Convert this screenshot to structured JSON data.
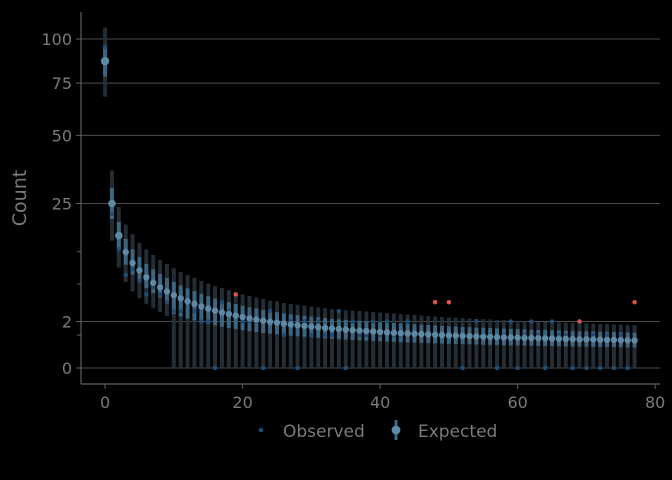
{
  "chart_data": {
    "type": "scatter",
    "title": "",
    "xlabel": "",
    "ylabel": "Count",
    "xlim": [
      -3.5,
      80.7
    ],
    "ylim_axis_ticks_note": "sqrt scale",
    "y_scale": "sqrt",
    "ylim": [
      0,
      125
    ],
    "x_ticks": [
      0,
      20,
      40,
      60,
      80
    ],
    "x_tick_labels": [
      "0",
      "20",
      "40",
      "60",
      "80"
    ],
    "y_major_ticks": [
      0,
      2,
      25,
      50,
      75,
      100
    ],
    "y_major_tick_labels": [
      "0",
      "2",
      "25",
      "50",
      "75",
      "100"
    ],
    "y_minor_ticks": [
      1,
      6.5,
      12.5
    ],
    "grid": true,
    "legend_position": "bottom",
    "legend": [
      {
        "label": "Observed",
        "color": "#1d4e77"
      },
      {
        "label": "Expected",
        "color": "#5e8aa8"
      }
    ],
    "colors": {
      "observed": "#1d4e77",
      "expected": "#5e8aa8",
      "interval": "#3e6b8a",
      "outlier": "#e0534a",
      "grid": "#4d4d4d",
      "axis": "#5f5f5f",
      "text": "#7a7a7a"
    },
    "expected": {
      "x": [
        0,
        1,
        2,
        3,
        4,
        5,
        6,
        7,
        8,
        9,
        10,
        11,
        12,
        13,
        14,
        15,
        16,
        17,
        18,
        19,
        20,
        21,
        22,
        23,
        24,
        25,
        26,
        27,
        28,
        29,
        30,
        31,
        32,
        33,
        34,
        35,
        36,
        37,
        38,
        39,
        40,
        41,
        42,
        43,
        44,
        45,
        46,
        47,
        48,
        49,
        50,
        51,
        52,
        53,
        54,
        55,
        56,
        57,
        58,
        59,
        60,
        61,
        62,
        63,
        64,
        65,
        66,
        67,
        68,
        69,
        70,
        71,
        72,
        73,
        74,
        75,
        76,
        77
      ],
      "y": [
        87,
        25,
        16.2,
        12.4,
        10.2,
        8.8,
        7.6,
        6.7,
        6.0,
        5.4,
        4.9,
        4.5,
        4.1,
        3.8,
        3.5,
        3.26,
        3.04,
        2.85,
        2.69,
        2.54,
        2.4,
        2.28,
        2.17,
        2.07,
        1.98,
        1.9,
        1.82,
        1.75,
        1.69,
        1.63,
        1.58,
        1.53,
        1.48,
        1.44,
        1.4,
        1.36,
        1.32,
        1.29,
        1.26,
        1.23,
        1.2,
        1.17,
        1.15,
        1.12,
        1.1,
        1.08,
        1.06,
        1.04,
        1.02,
        1.0,
        0.98,
        0.97,
        0.95,
        0.94,
        0.92,
        0.91,
        0.9,
        0.88,
        0.87,
        0.86,
        0.85,
        0.84,
        0.83,
        0.82,
        0.81,
        0.8,
        0.79,
        0.78,
        0.77,
        0.76,
        0.76,
        0.75,
        0.74,
        0.73,
        0.73,
        0.72,
        0.71,
        0.7
      ],
      "lower": [
        68,
        15,
        9.3,
        6.8,
        5.4,
        4.5,
        3.8,
        3.3,
        2.9,
        2.5,
        0,
        0,
        0,
        0,
        0,
        0,
        0,
        0,
        0,
        0,
        0,
        0,
        0,
        0,
        0,
        0,
        0,
        0,
        0,
        0,
        0,
        0,
        0,
        0,
        0,
        0,
        0,
        0,
        0,
        0,
        0,
        0,
        0,
        0,
        0,
        0,
        0,
        0,
        0,
        0,
        0,
        0,
        0,
        0,
        0,
        0,
        0,
        0,
        0,
        0,
        0,
        0,
        0,
        0,
        0,
        0,
        0,
        0,
        0,
        0,
        0,
        0,
        0,
        0,
        0,
        0,
        0,
        0
      ],
      "upper": [
        107,
        36,
        24,
        19,
        16.5,
        14.5,
        13,
        11.8,
        10.8,
        10,
        9.2,
        8.5,
        8,
        7.5,
        7,
        6.6,
        6.2,
        5.9,
        5.6,
        5.3,
        5,
        4.8,
        4.6,
        4.4,
        4.2,
        4.1,
        3.9,
        3.8,
        3.7,
        3.6,
        3.5,
        3.4,
        3.3,
        3.2,
        3.15,
        3.1,
        3.05,
        3.0,
        2.95,
        2.9,
        2.85,
        2.8,
        2.75,
        2.7,
        2.65,
        2.6,
        2.55,
        2.5,
        2.45,
        2.4,
        2.36,
        2.33,
        2.3,
        2.27,
        2.24,
        2.21,
        2.18,
        2.15,
        2.12,
        2.09,
        2.06,
        2.03,
        2.0,
        1.98,
        1.96,
        1.94,
        1.92,
        1.9,
        1.88,
        1.86,
        1.84,
        1.82,
        1.8,
        1.78,
        1.76,
        1.74,
        1.72,
        1.7
      ]
    },
    "observed": {
      "x": [
        0,
        1,
        2,
        3,
        4,
        5,
        6,
        7,
        8,
        9,
        10,
        11,
        12,
        13,
        14,
        15,
        16,
        17,
        18,
        19,
        20,
        21,
        22,
        23,
        24,
        25,
        26,
        27,
        28,
        29,
        30,
        31,
        32,
        33,
        34,
        35,
        36,
        37,
        38,
        39,
        40,
        41,
        42,
        43,
        44,
        45,
        46,
        47,
        48,
        49,
        50,
        51,
        52,
        53,
        54,
        55,
        56,
        57,
        58,
        59,
        60,
        61,
        62,
        63,
        64,
        65,
        66,
        67,
        68,
        69,
        70,
        71,
        72,
        73,
        74,
        75,
        76,
        77
      ],
      "y": [
        95,
        22,
        13,
        8,
        9,
        7,
        5,
        6,
        5,
        4,
        3,
        3,
        4,
        3,
        2,
        2,
        0,
        4,
        3,
        5,
        2,
        2,
        2,
        0,
        3,
        2,
        1,
        2,
        0,
        2,
        1,
        2,
        1,
        1,
        3,
        0,
        2,
        1,
        1,
        2,
        1,
        2,
        1,
        1,
        2,
        1,
        1,
        1,
        4,
        1,
        4,
        1,
        0,
        1,
        2,
        1,
        1,
        0,
        1,
        2,
        0,
        1,
        2,
        1,
        0,
        2,
        1,
        1,
        0,
        2,
        0,
        1,
        0,
        1,
        0,
        1,
        0,
        4
      ]
    },
    "outliers": {
      "x": [
        19,
        48,
        50,
        69,
        77
      ],
      "y": [
        5,
        4,
        4,
        2,
        4
      ]
    }
  }
}
